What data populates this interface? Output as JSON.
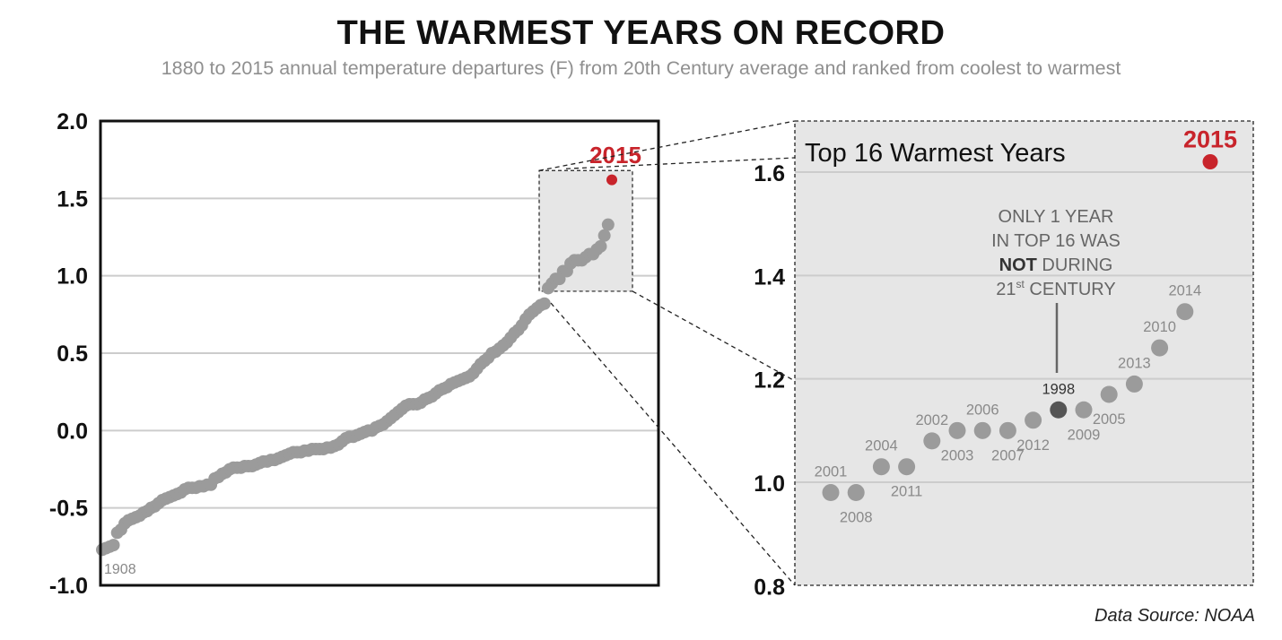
{
  "title": "THE WARMEST YEARS ON RECORD",
  "subtitle": "1880 to 2015 annual temperature departures (F) from 20th Century average and ranked from coolest to warmest",
  "source": "Data Source: NOAA",
  "colors": {
    "point": "#9b9b9b",
    "highlight": "#c8242b",
    "dark_point": "#555555",
    "zoom_bg": "#e6e6e6",
    "grid": "#cccccc"
  },
  "chart_data": [
    {
      "type": "scatter",
      "title": "",
      "xlabel": "",
      "ylabel": "",
      "ylim": [
        -1.0,
        2.0
      ],
      "yticks": [
        2.0,
        1.5,
        1.0,
        0.5,
        0.0,
        -0.5,
        -1.0
      ],
      "ytick_labels": [
        "2.0",
        "1.5",
        "1.0",
        "0.5",
        "0.0",
        "-0.5",
        "-1.0"
      ],
      "grid": true,
      "description_order": "years ranked from coolest to warmest",
      "values": [
        -0.77,
        -0.76,
        -0.75,
        -0.74,
        -0.66,
        -0.64,
        -0.6,
        -0.58,
        -0.57,
        -0.56,
        -0.55,
        -0.53,
        -0.52,
        -0.5,
        -0.49,
        -0.47,
        -0.45,
        -0.44,
        -0.43,
        -0.42,
        -0.41,
        -0.4,
        -0.38,
        -0.37,
        -0.37,
        -0.37,
        -0.36,
        -0.36,
        -0.35,
        -0.35,
        -0.31,
        -0.3,
        -0.28,
        -0.27,
        -0.25,
        -0.24,
        -0.24,
        -0.24,
        -0.23,
        -0.23,
        -0.23,
        -0.22,
        -0.21,
        -0.2,
        -0.2,
        -0.19,
        -0.19,
        -0.18,
        -0.17,
        -0.16,
        -0.15,
        -0.14,
        -0.14,
        -0.14,
        -0.13,
        -0.13,
        -0.12,
        -0.12,
        -0.12,
        -0.12,
        -0.11,
        -0.11,
        -0.1,
        -0.09,
        -0.07,
        -0.05,
        -0.04,
        -0.04,
        -0.03,
        -0.02,
        -0.01,
        0.0,
        0.0,
        0.02,
        0.03,
        0.04,
        0.06,
        0.08,
        0.1,
        0.12,
        0.14,
        0.16,
        0.17,
        0.17,
        0.17,
        0.18,
        0.2,
        0.21,
        0.22,
        0.24,
        0.26,
        0.27,
        0.28,
        0.3,
        0.31,
        0.32,
        0.33,
        0.34,
        0.35,
        0.37,
        0.4,
        0.43,
        0.45,
        0.47,
        0.5,
        0.51,
        0.53,
        0.55,
        0.57,
        0.6,
        0.63,
        0.65,
        0.68,
        0.72,
        0.75,
        0.77,
        0.79,
        0.81,
        0.82,
        0.92,
        0.95,
        0.98,
        0.98,
        1.03,
        1.03,
        1.08,
        1.1,
        1.1,
        1.1,
        1.12,
        1.14,
        1.14,
        1.17,
        1.19,
        1.26,
        1.33,
        1.62
      ],
      "annotations": [
        {
          "label": "1908",
          "rank": 1
        },
        {
          "label": "2015",
          "rank": 136,
          "highlight": true
        }
      ]
    },
    {
      "type": "scatter",
      "title": "Top 16 Warmest Years",
      "xlabel": "",
      "ylabel": "",
      "ylim": [
        0.8,
        1.7
      ],
      "yticks": [
        1.6,
        1.4,
        1.2,
        1.0,
        0.8
      ],
      "ytick_labels": [
        "1.6",
        "1.4",
        "1.2",
        "1.0",
        "0.8"
      ],
      "grid": true,
      "points": [
        {
          "year": "2001",
          "value": 0.98
        },
        {
          "year": "2008",
          "value": 0.98
        },
        {
          "year": "2004",
          "value": 1.03
        },
        {
          "year": "2011",
          "value": 1.03
        },
        {
          "year": "2002",
          "value": 1.08
        },
        {
          "year": "2003",
          "value": 1.1
        },
        {
          "year": "2006",
          "value": 1.1
        },
        {
          "year": "2007",
          "value": 1.1
        },
        {
          "year": "2012",
          "value": 1.12
        },
        {
          "year": "1998",
          "value": 1.14,
          "emphasis": true
        },
        {
          "year": "2009",
          "value": 1.14
        },
        {
          "year": "2005",
          "value": 1.17
        },
        {
          "year": "2013",
          "value": 1.19
        },
        {
          "year": "2010",
          "value": 1.26
        },
        {
          "year": "2014",
          "value": 1.33
        },
        {
          "year": "2015",
          "value": 1.62,
          "highlight": true
        }
      ],
      "callout": {
        "line1": "ONLY 1 YEAR",
        "line2": "IN TOP 16 WAS",
        "line3_bold": "NOT",
        "line3_rest": " DURING",
        "line4_num": "21",
        "line4_sup": "st",
        "line4_rest": " CENTURY"
      }
    }
  ]
}
